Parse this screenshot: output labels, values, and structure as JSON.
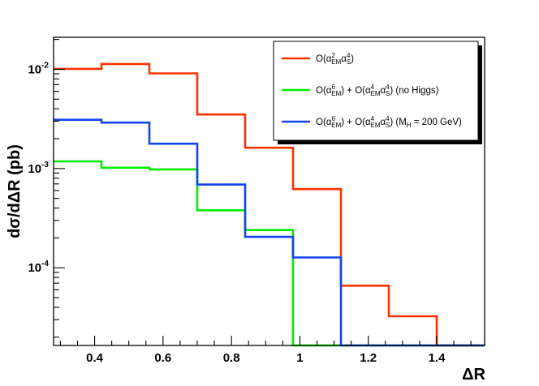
{
  "chart_data": {
    "type": "line",
    "step": true,
    "log_y": true,
    "xlabel": "ΔR",
    "ylabel": "dσ/dΔR  (pb)",
    "xlim": [
      0.28,
      1.54
    ],
    "ylim": [
      1.65e-05,
      0.021
    ],
    "x_ticks": [
      {
        "value": 0.4,
        "label": "0.4"
      },
      {
        "value": 0.6,
        "label": "0.6"
      },
      {
        "value": 0.8,
        "label": "0.8"
      },
      {
        "value": 1.0,
        "label": "1"
      },
      {
        "value": 1.2,
        "label": "1.2"
      },
      {
        "value": 1.4,
        "label": "1.4"
      }
    ],
    "y_ticks": [
      {
        "value": 0.01,
        "mantissa": "10",
        "exponent": "-2"
      },
      {
        "value": 0.001,
        "mantissa": "10",
        "exponent": "-3"
      },
      {
        "value": 0.0001,
        "mantissa": "10",
        "exponent": "-4"
      }
    ],
    "bin_edges": [
      0.28,
      0.42,
      0.56,
      0.7,
      0.84,
      0.98,
      1.12,
      1.26,
      1.4,
      1.54
    ],
    "legend_position": "top-right",
    "series": [
      {
        "name_parts": [
          {
            "t": "O(α"
          },
          {
            "t": "2",
            "sup": true
          },
          {
            "t": "EM",
            "sub": true,
            "back": true
          },
          {
            "t": "α"
          },
          {
            "t": "4",
            "sup": true
          },
          {
            "t": "S",
            "sub": true,
            "back": true
          },
          {
            "t": ")"
          }
        ],
        "color": "#ff3300",
        "values": [
          0.0101,
          0.0113,
          0.0091,
          0.0035,
          0.00162,
          0.00062,
          6.6e-05,
          3.25e-05,
          1.65e-05
        ]
      },
      {
        "name_parts": [
          {
            "t": "O(α"
          },
          {
            "t": "6",
            "sup": true
          },
          {
            "t": "EM",
            "sub": true,
            "back": true
          },
          {
            "t": ") + O(α"
          },
          {
            "t": "4",
            "sup": true
          },
          {
            "t": "EM",
            "sub": true,
            "back": true
          },
          {
            "t": "α"
          },
          {
            "t": "4",
            "sup": true
          },
          {
            "t": "S",
            "sub": true,
            "back": true
          },
          {
            "t": ") (no Higgs)"
          }
        ],
        "color": "#00ee00",
        "values": [
          0.00118,
          0.00102,
          0.00098,
          0.00038,
          0.00024,
          1.65e-05,
          1.65e-05,
          1.65e-05,
          1.65e-05
        ]
      },
      {
        "name_parts": [
          {
            "t": "O(α"
          },
          {
            "t": "6",
            "sup": true
          },
          {
            "t": "EM",
            "sub": true,
            "back": true
          },
          {
            "t": ") + O(α"
          },
          {
            "t": "4",
            "sup": true
          },
          {
            "t": "EM",
            "sub": true,
            "back": true
          },
          {
            "t": "α"
          },
          {
            "t": "4",
            "sup": true
          },
          {
            "t": "S",
            "sub": true,
            "back": true
          },
          {
            "t": ") (M"
          },
          {
            "t": "H",
            "sub": true
          },
          {
            "t": " = 200 GeV)"
          }
        ],
        "color": "#1144ee",
        "values": [
          0.0031,
          0.0029,
          0.00178,
          0.00069,
          0.000205,
          0.000127,
          1.65e-05,
          1.65e-05,
          1.65e-05
        ]
      }
    ]
  }
}
